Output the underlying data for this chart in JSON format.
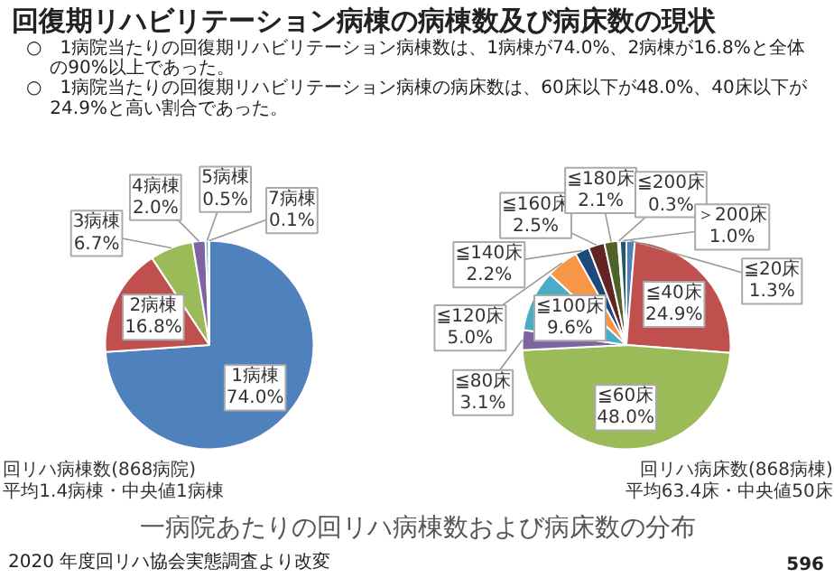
{
  "chart_data": [
    {
      "type": "other",
      "title": "回復期リハビリテーション病棟の病棟数及び病床数の現状",
      "annotations": [
        "○　1病院当たりの回復期リハビリテーション病棟数は、1病棟が74.0%、2病棟が16.8%と全体の90%以上であった。",
        "○　1病院当たりの回復期リハビリテーション病棟の病床数は、60床以下が48.0%、40床以下が24.9%と高い割合であった。"
      ]
    },
    {
      "type": "pie",
      "categories": [
        "1病棟",
        "2病棟",
        "3病棟",
        "4病棟",
        "5病棟",
        "7病棟"
      ],
      "values": [
        74.0,
        16.8,
        6.7,
        2.0,
        0.5,
        0.1
      ],
      "colors": [
        "#4f81bd",
        "#c0504d",
        "#9bbb59",
        "#8064a2",
        "#4bacc6",
        "#f79646"
      ],
      "value_labels": [
        "74.0%",
        "16.8%",
        "6.7%",
        "2.0%",
        "0.5%",
        "0.1%"
      ],
      "annotations": [
        "回リハ病棟数(868病院)",
        "平均1.4病棟・中央値1病棟"
      ]
    },
    {
      "type": "pie",
      "categories": [
        "≦20床",
        "≦40床",
        "≦60床",
        "≦80床",
        "≦100床",
        "≦120床",
        "≦140床",
        "≦160床",
        "≦180床",
        "≦200床",
        "＞200床"
      ],
      "values": [
        1.3,
        24.9,
        48.0,
        3.1,
        9.6,
        5.0,
        2.2,
        2.5,
        2.1,
        0.3,
        1.0
      ],
      "colors": [
        "#4f81bd",
        "#c0504d",
        "#9bbb59",
        "#8064a2",
        "#4bacc6",
        "#f79646",
        "#1f497d",
        "#632523",
        "#4f6228",
        "#b3a2c7",
        "#215968"
      ],
      "value_labels": [
        "1.3%",
        "24.9%",
        "48.0%",
        "3.1%",
        "9.6%",
        "5.0%",
        "2.2%",
        "2.5%",
        "2.1%",
        "0.3%",
        "1.0%"
      ],
      "annotations": [
        "回リハ病床数(868病棟)",
        "平均63.4床・中央値50床"
      ]
    },
    {
      "type": "other",
      "annotations": [
        "一病院あたりの回リハ病棟数および病床数の分布",
        "2020 年度回リハ協会実態調査より改変",
        "596"
      ]
    }
  ]
}
